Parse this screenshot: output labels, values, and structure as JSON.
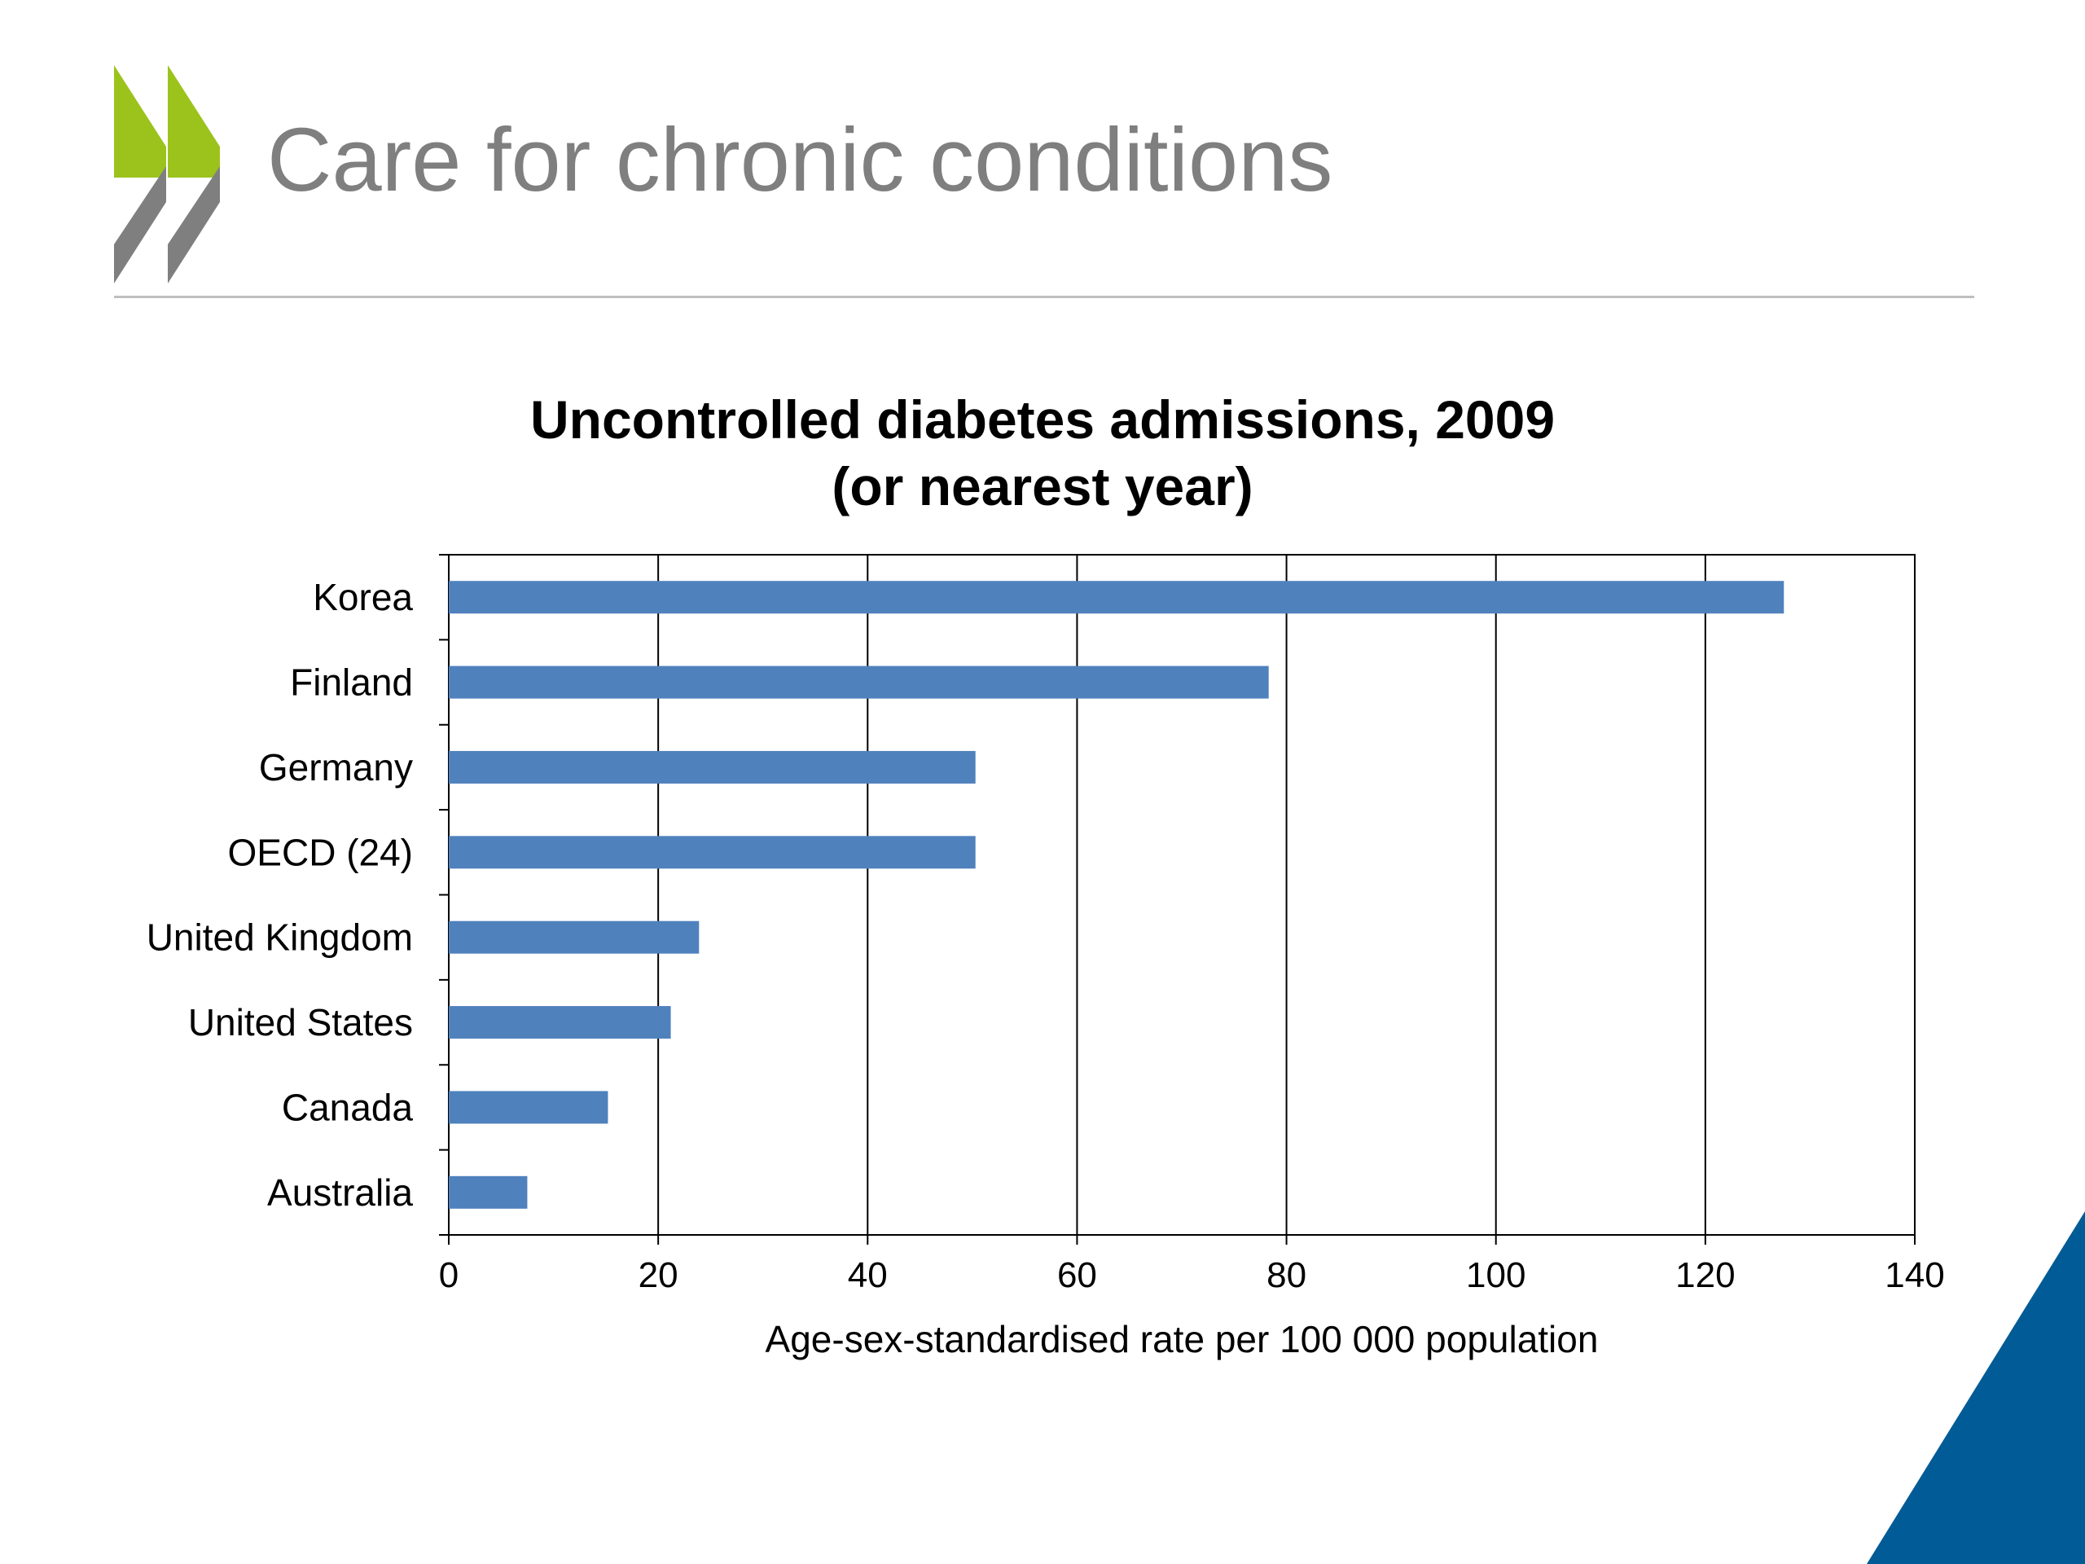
{
  "slide": {
    "title": "Care for chronic conditions",
    "colors": {
      "title": "#7f7f7f",
      "rule": "#bfbfbf",
      "logo_green": "#9bc31c",
      "logo_grey": "#7f7f7f",
      "corner": "#005b96"
    },
    "logo_icon": "oecd-chevrons-icon",
    "corner_icon": "corner-triangle-icon"
  },
  "chart_data": {
    "type": "bar",
    "orientation": "horizontal",
    "title": "Uncontrolled diabetes admissions, 2009",
    "subtitle": "(or nearest year)",
    "categories": [
      "Korea",
      "Finland",
      "Germany",
      "OECD (24)",
      "United Kingdom",
      "United States",
      "Canada",
      "Australia"
    ],
    "values": [
      127.5,
      78.3,
      50.3,
      50.3,
      23.9,
      21.2,
      15.2,
      7.5
    ],
    "xlabel": "Age-sex-standardised rate per 100 000 population",
    "ylabel": "",
    "xlim": [
      0,
      140
    ],
    "xticks": [
      0,
      20,
      40,
      60,
      80,
      100,
      120,
      140
    ],
    "grid": true,
    "legend": "none",
    "bar_color": "#4f81bd"
  }
}
